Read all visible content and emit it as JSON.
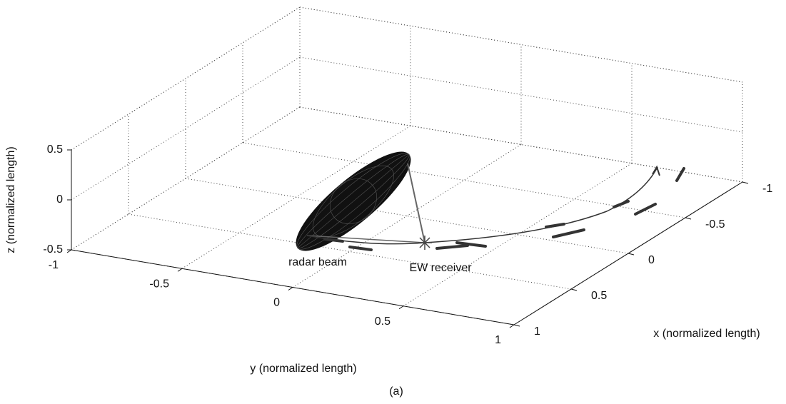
{
  "chart_data": {
    "type": "line3d",
    "xlabel": "x (normalized length)",
    "ylabel": "y (normalized length)",
    "zlabel": "z (normalized length)",
    "xlim": [
      -1,
      1
    ],
    "ylim": [
      -1,
      1
    ],
    "zlim": [
      -0.5,
      0.5
    ],
    "xticks": [
      -1,
      -0.5,
      0,
      0.5,
      1
    ],
    "yticks": [
      -1,
      -0.5,
      0,
      0.5,
      1
    ],
    "zticks": [
      -0.5,
      0,
      0.5
    ],
    "grid": true,
    "annotations": [
      "radar beam",
      "EW receiver"
    ],
    "caption": "(a)"
  }
}
